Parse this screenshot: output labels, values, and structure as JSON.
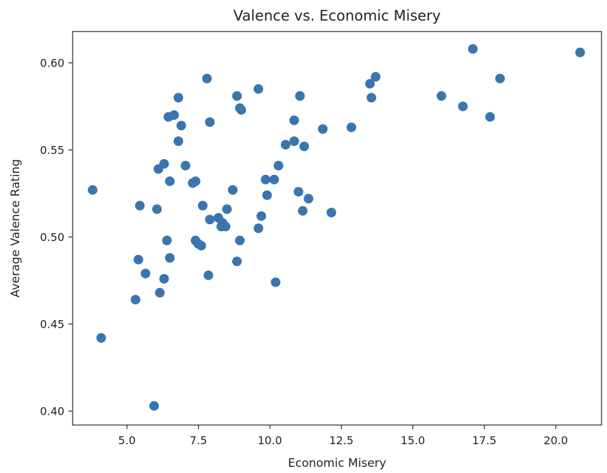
{
  "chart_data": {
    "type": "scatter",
    "title": "Valence vs. Economic Misery",
    "xlabel": "Economic Misery",
    "ylabel": "Average Valence Rating",
    "xlim": [
      3.1,
      21.6
    ],
    "ylim": [
      0.392,
      0.618
    ],
    "x_ticks": [
      5.0,
      7.5,
      10.0,
      12.5,
      15.0,
      17.5,
      20.0
    ],
    "x_tick_labels": [
      "5.0",
      "7.5",
      "10.0",
      "12.5",
      "15.0",
      "17.5",
      "20.0"
    ],
    "y_ticks": [
      0.4,
      0.45,
      0.5,
      0.55,
      0.6
    ],
    "y_tick_labels": [
      "0.40",
      "0.45",
      "0.50",
      "0.55",
      "0.60"
    ],
    "grid": false,
    "marker_color": "#3a75b0",
    "axis_color": "#222222",
    "points": [
      {
        "x": 3.8,
        "y": 0.527
      },
      {
        "x": 4.1,
        "y": 0.442
      },
      {
        "x": 5.3,
        "y": 0.464
      },
      {
        "x": 5.4,
        "y": 0.487
      },
      {
        "x": 5.45,
        "y": 0.518
      },
      {
        "x": 5.65,
        "y": 0.479
      },
      {
        "x": 5.95,
        "y": 0.403
      },
      {
        "x": 6.05,
        "y": 0.516
      },
      {
        "x": 6.1,
        "y": 0.539
      },
      {
        "x": 6.15,
        "y": 0.468
      },
      {
        "x": 6.3,
        "y": 0.542
      },
      {
        "x": 6.3,
        "y": 0.476
      },
      {
        "x": 6.4,
        "y": 0.498
      },
      {
        "x": 6.45,
        "y": 0.569
      },
      {
        "x": 6.5,
        "y": 0.488
      },
      {
        "x": 6.5,
        "y": 0.532
      },
      {
        "x": 6.65,
        "y": 0.57
      },
      {
        "x": 6.8,
        "y": 0.555
      },
      {
        "x": 6.8,
        "y": 0.58
      },
      {
        "x": 6.9,
        "y": 0.564
      },
      {
        "x": 7.05,
        "y": 0.541
      },
      {
        "x": 7.3,
        "y": 0.531
      },
      {
        "x": 7.4,
        "y": 0.532
      },
      {
        "x": 7.4,
        "y": 0.498
      },
      {
        "x": 7.5,
        "y": 0.496
      },
      {
        "x": 7.6,
        "y": 0.495
      },
      {
        "x": 7.65,
        "y": 0.518
      },
      {
        "x": 7.8,
        "y": 0.591
      },
      {
        "x": 7.85,
        "y": 0.478
      },
      {
        "x": 7.9,
        "y": 0.51
      },
      {
        "x": 7.9,
        "y": 0.566
      },
      {
        "x": 8.2,
        "y": 0.511
      },
      {
        "x": 8.3,
        "y": 0.506
      },
      {
        "x": 8.35,
        "y": 0.508
      },
      {
        "x": 8.45,
        "y": 0.506
      },
      {
        "x": 8.5,
        "y": 0.516
      },
      {
        "x": 8.7,
        "y": 0.527
      },
      {
        "x": 8.85,
        "y": 0.486
      },
      {
        "x": 8.85,
        "y": 0.581
      },
      {
        "x": 8.95,
        "y": 0.498
      },
      {
        "x": 8.95,
        "y": 0.574
      },
      {
        "x": 9.0,
        "y": 0.573
      },
      {
        "x": 9.6,
        "y": 0.505
      },
      {
        "x": 9.6,
        "y": 0.585
      },
      {
        "x": 9.7,
        "y": 0.512
      },
      {
        "x": 9.85,
        "y": 0.533
      },
      {
        "x": 9.9,
        "y": 0.524
      },
      {
        "x": 10.15,
        "y": 0.533
      },
      {
        "x": 10.2,
        "y": 0.474
      },
      {
        "x": 10.3,
        "y": 0.541
      },
      {
        "x": 10.55,
        "y": 0.553
      },
      {
        "x": 10.85,
        "y": 0.555
      },
      {
        "x": 10.85,
        "y": 0.567
      },
      {
        "x": 11.0,
        "y": 0.526
      },
      {
        "x": 11.05,
        "y": 0.581
      },
      {
        "x": 11.15,
        "y": 0.515
      },
      {
        "x": 11.2,
        "y": 0.552
      },
      {
        "x": 11.35,
        "y": 0.522
      },
      {
        "x": 11.85,
        "y": 0.562
      },
      {
        "x": 12.15,
        "y": 0.514
      },
      {
        "x": 12.85,
        "y": 0.563
      },
      {
        "x": 13.5,
        "y": 0.588
      },
      {
        "x": 13.55,
        "y": 0.58
      },
      {
        "x": 13.7,
        "y": 0.592
      },
      {
        "x": 16.0,
        "y": 0.581
      },
      {
        "x": 16.75,
        "y": 0.575
      },
      {
        "x": 17.1,
        "y": 0.608
      },
      {
        "x": 17.7,
        "y": 0.569
      },
      {
        "x": 18.05,
        "y": 0.591
      },
      {
        "x": 20.85,
        "y": 0.606
      }
    ]
  }
}
